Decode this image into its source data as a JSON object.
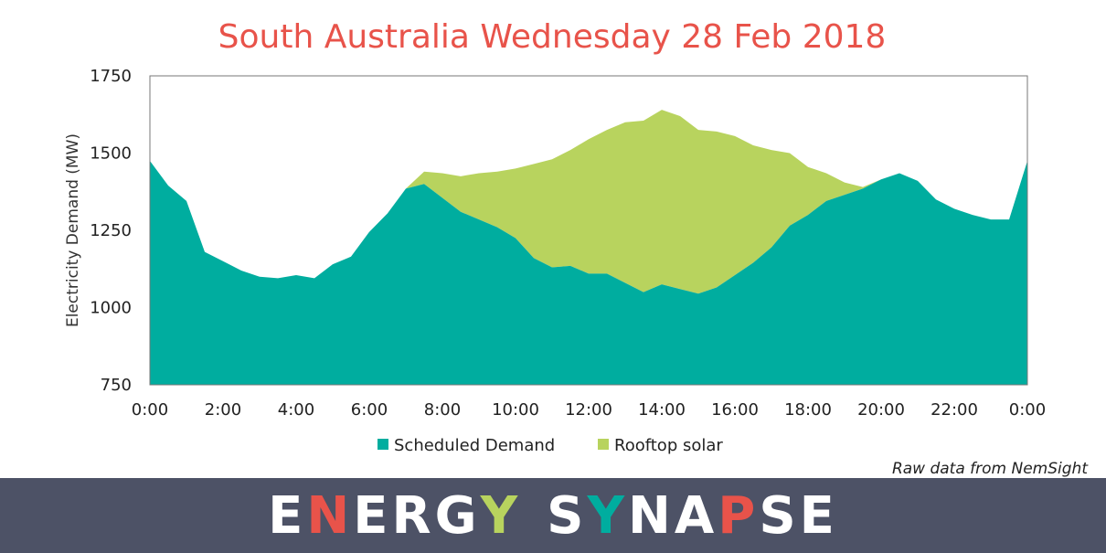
{
  "chart_data": {
    "type": "area",
    "title": "South Australia Wednesday 28 Feb 2018",
    "ylabel": "Electricity Demand (MW)",
    "ylim": [
      750,
      1750
    ],
    "yticks": [
      "750",
      "1000",
      "1250",
      "1500",
      "1750"
    ],
    "xticks": [
      "0:00",
      "2:00",
      "4:00",
      "6:00",
      "8:00",
      "10:00",
      "12:00",
      "14:00",
      "16:00",
      "18:00",
      "20:00",
      "22:00",
      "0:00"
    ],
    "x_hours": [
      0,
      0.5,
      1,
      1.5,
      2,
      2.5,
      3,
      3.5,
      4,
      4.5,
      5,
      5.5,
      6,
      6.5,
      7,
      7.5,
      8,
      8.5,
      9,
      9.5,
      10,
      10.5,
      11,
      11.5,
      12,
      12.5,
      13,
      13.5,
      14,
      14.5,
      15,
      15.5,
      16,
      16.5,
      17,
      17.5,
      18,
      18.5,
      19,
      19.5,
      20,
      20.5,
      21,
      21.5,
      22,
      22.5,
      23,
      23.5,
      24
    ],
    "series": [
      {
        "name": "Scheduled Demand",
        "color": "#00ad9f",
        "values": [
          1475,
          1395,
          1345,
          1180,
          1150,
          1120,
          1100,
          1095,
          1105,
          1095,
          1140,
          1165,
          1245,
          1305,
          1385,
          1400,
          1355,
          1310,
          1285,
          1260,
          1225,
          1160,
          1130,
          1135,
          1110,
          1110,
          1080,
          1050,
          1075,
          1060,
          1045,
          1065,
          1105,
          1145,
          1195,
          1265,
          1300,
          1345,
          1365,
          1385,
          1415,
          1435,
          1410,
          1350,
          1320,
          1300,
          1285,
          1285,
          1475
        ]
      },
      {
        "name": "Rooftop solar",
        "color": "#b8d35e",
        "total": [
          1475,
          1395,
          1345,
          1180,
          1150,
          1120,
          1100,
          1095,
          1105,
          1095,
          1140,
          1165,
          1245,
          1305,
          1385,
          1440,
          1435,
          1425,
          1435,
          1440,
          1450,
          1465,
          1480,
          1510,
          1545,
          1575,
          1600,
          1605,
          1640,
          1620,
          1575,
          1570,
          1555,
          1525,
          1510,
          1500,
          1455,
          1435,
          1405,
          1390,
          1415,
          1435,
          1410,
          1350,
          1320,
          1300,
          1285,
          1285,
          1475
        ]
      }
    ],
    "legend_position": "bottom",
    "grid": false
  },
  "source_note": "Raw data from NemSight",
  "footer": {
    "brand_text": "ENERGY SYNAPSE",
    "letter_colors": [
      "#ffffff",
      "#e8534a",
      "#ffffff",
      "#ffffff",
      "#ffffff",
      "#b8d35e",
      "#ffffff",
      "#00ad9f",
      "#ffffff",
      "#ffffff",
      "#e8534a",
      "#ffffff",
      "#ffffff"
    ]
  }
}
